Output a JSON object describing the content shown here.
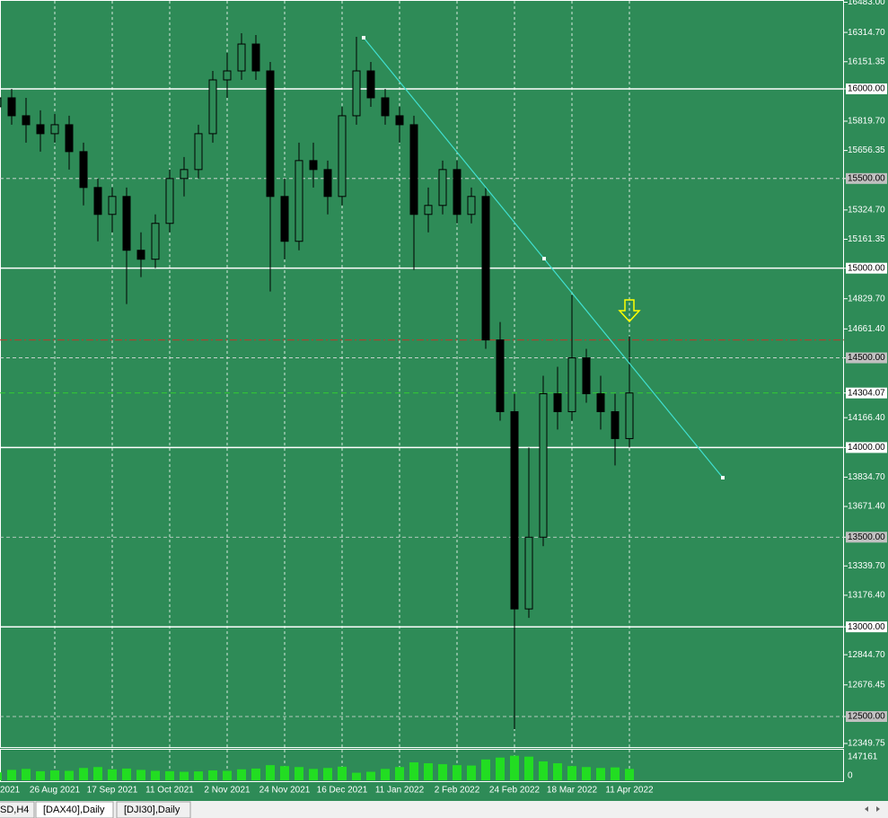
{
  "chart_data": {
    "type": "candlestick",
    "categories": [
      "2021",
      null,
      null,
      null,
      "26 Aug 2021",
      null,
      null,
      null,
      "17 Sep 2021",
      null,
      null,
      null,
      "11 Oct 2021",
      null,
      null,
      null,
      "2 Nov 2021",
      null,
      null,
      null,
      "24 Nov 2021",
      null,
      null,
      null,
      "16 Dec 2021",
      null,
      null,
      null,
      "11 Jan 2022",
      null,
      null,
      null,
      "2 Feb 2022",
      null,
      null,
      null,
      "24 Feb 2022",
      null,
      null,
      null,
      "18 Mar 2022",
      null,
      null,
      null,
      "11 Apr 2022"
    ],
    "open": [
      15900,
      15950,
      15850,
      15800,
      15750,
      15800,
      15650,
      15450,
      15300,
      15400,
      15100,
      15050,
      15250,
      15500,
      15550,
      15750,
      16050,
      16100,
      16250,
      16100,
      15400,
      15150,
      15600,
      15550,
      15400,
      15850,
      16100,
      15950,
      15850,
      15800,
      15300,
      15350,
      15550,
      15300,
      15400,
      14600,
      14200,
      13100,
      13500,
      14300,
      14200,
      14500,
      14300,
      14200,
      14050
    ],
    "high": [
      16020,
      16000,
      15950,
      15880,
      15860,
      15850,
      15700,
      15500,
      15450,
      15450,
      15200,
      15300,
      15550,
      15620,
      15800,
      16100,
      16200,
      16310,
      16300,
      16150,
      15500,
      15700,
      15700,
      15600,
      15900,
      16290,
      16150,
      16000,
      15900,
      15850,
      15450,
      15600,
      15600,
      15450,
      15450,
      14700,
      14300,
      14000,
      14400,
      14450,
      14850,
      14550,
      14400,
      14300,
      14620
    ],
    "low": [
      15850,
      15800,
      15700,
      15650,
      15700,
      15550,
      15350,
      15150,
      15200,
      14800,
      14950,
      15000,
      15200,
      15400,
      15500,
      15700,
      15950,
      16050,
      16050,
      14870,
      15050,
      15100,
      15450,
      15300,
      15350,
      15800,
      15900,
      15800,
      15700,
      14990,
      15200,
      15300,
      15250,
      15250,
      14550,
      14150,
      12430,
      13050,
      13450,
      14100,
      14150,
      14250,
      14100,
      13900,
      14000
    ],
    "close": [
      15950,
      15850,
      15800,
      15750,
      15800,
      15650,
      15450,
      15300,
      15400,
      15100,
      15050,
      15250,
      15500,
      15550,
      15750,
      16050,
      16100,
      16250,
      16100,
      15400,
      15150,
      15600,
      15550,
      15400,
      15850,
      16100,
      15950,
      15850,
      15800,
      15300,
      15350,
      15550,
      15300,
      15400,
      14600,
      14200,
      13100,
      13500,
      14300,
      14200,
      14500,
      14300,
      14200,
      14050,
      14304.07
    ],
    "volume": [
      42000,
      55000,
      60000,
      48000,
      52000,
      50000,
      65000,
      70000,
      58000,
      62000,
      55000,
      50000,
      48000,
      45000,
      47000,
      52000,
      50000,
      58000,
      62000,
      80000,
      75000,
      70000,
      60000,
      65000,
      72000,
      40000,
      45000,
      60000,
      70000,
      95000,
      90000,
      85000,
      80000,
      78000,
      110000,
      120000,
      130000,
      125000,
      100000,
      90000,
      75000,
      70000,
      65000,
      68000,
      60000
    ],
    "bull_color": "#2e8b57",
    "bear_color": "#000000",
    "volume_color": "#22dd22",
    "ylim": [
      12349.75,
      16483
    ],
    "yticks": [
      {
        "value": 16483,
        "label": "16483.00"
      },
      {
        "value": 16314.7,
        "label": "16314.70"
      },
      {
        "value": 16151.35,
        "label": "16151.35"
      },
      {
        "value": 16000,
        "label": "16000.00"
      },
      {
        "value": 15819.7,
        "label": "15819.70"
      },
      {
        "value": 15656.35,
        "label": "15656.35"
      },
      {
        "value": 15500,
        "label": "15500.00"
      },
      {
        "value": 15324.7,
        "label": "15324.70"
      },
      {
        "value": 15161.35,
        "label": "15161.35"
      },
      {
        "value": 15000,
        "label": "15000.00"
      },
      {
        "value": 14829.7,
        "label": "14829.70"
      },
      {
        "value": 14661.4,
        "label": "14661.40"
      },
      {
        "value": 14500,
        "label": "14500.00"
      },
      {
        "value": 14304.07,
        "label": "14304.07"
      },
      {
        "value": 14166.4,
        "label": "14166.40"
      },
      {
        "value": 14000,
        "label": "14000.00"
      },
      {
        "value": 13834.7,
        "label": "13834.70"
      },
      {
        "value": 13671.4,
        "label": "13671.40"
      },
      {
        "value": 13500,
        "label": "13500.00"
      },
      {
        "value": 13339.7,
        "label": "13339.70"
      },
      {
        "value": 13176.4,
        "label": "13176.40"
      },
      {
        "value": 13000,
        "label": "13000.00"
      },
      {
        "value": 12844.7,
        "label": "12844.70"
      },
      {
        "value": 12676.45,
        "label": "12676.45"
      },
      {
        "value": 12500,
        "label": "12500.00"
      },
      {
        "value": 12349.75,
        "label": "12349.75"
      }
    ],
    "solid_levels": [
      16000,
      15000,
      14000,
      13000
    ],
    "dashed_levels": [
      15500,
      14500,
      13500,
      12500
    ],
    "bid": 14304.07,
    "alert_level": 14600,
    "volume_ylim": [
      0,
      147161
    ],
    "volume_ticks": [
      0,
      147161
    ],
    "grid": "x"
  },
  "tabs": [
    "SD,H4",
    "[DAX40],Daily",
    "[DJI30],Daily"
  ]
}
